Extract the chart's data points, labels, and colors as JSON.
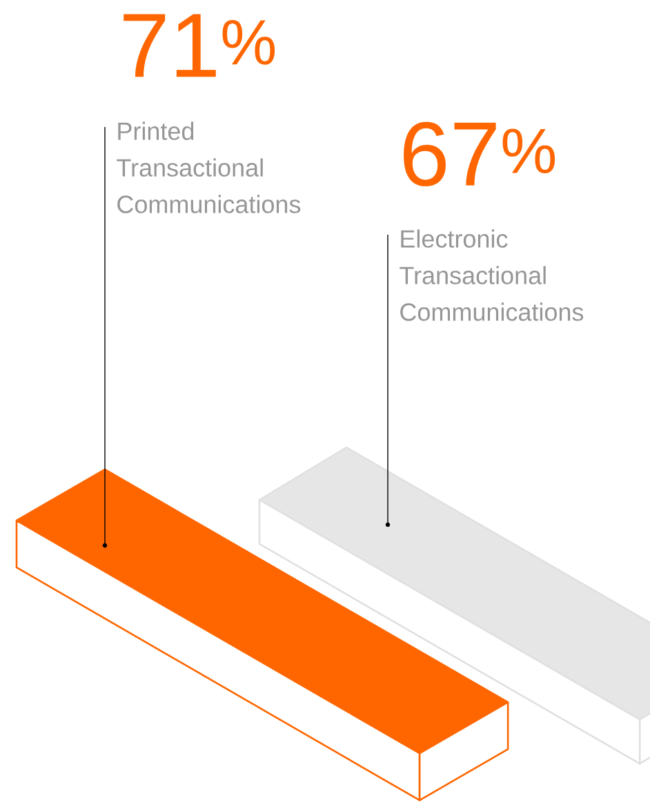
{
  "chart_data": {
    "type": "other",
    "categories": [
      "Printed Transactional Communications",
      "Electronic Transactional Communications"
    ],
    "values": [
      71,
      67
    ],
    "value_labels": [
      "71$^{%}$",
      "67$^{%}$"
    ],
    "colors": [
      "#ff6600",
      "#e6e6e6"
    ]
  }
}
